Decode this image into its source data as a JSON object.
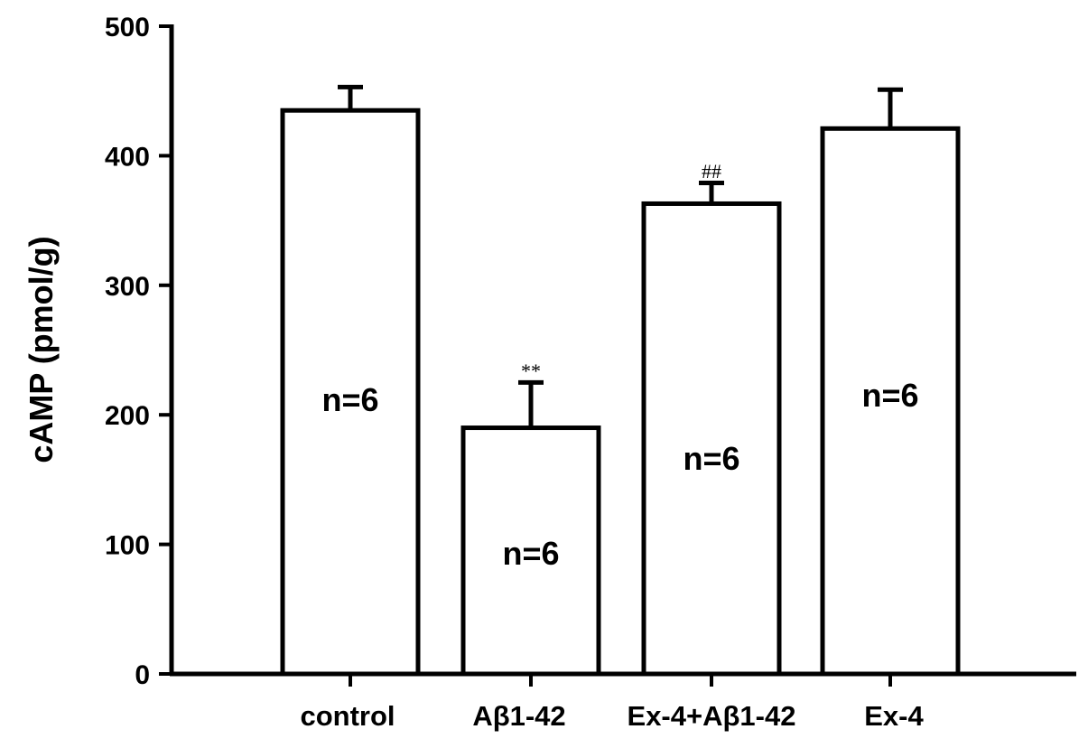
{
  "chart_data": {
    "type": "bar",
    "categories": [
      "control",
      "Aβ1-42",
      "Ex-4+Aβ1-42",
      "Ex-4"
    ],
    "values": [
      435,
      190,
      363,
      421
    ],
    "errors": [
      18,
      35,
      16,
      30
    ],
    "sample_labels": [
      "n=6",
      "n=6",
      "n=6",
      "n=6"
    ],
    "significance": [
      "",
      "**",
      "##",
      ""
    ],
    "ylabel": "cAMP (pmol/g)",
    "xlabel": "",
    "ylim": [
      0,
      500
    ],
    "yticks": [
      0,
      100,
      200,
      300,
      400,
      500
    ],
    "grid": false,
    "legend": "none",
    "colors": {
      "bar_fill": "#ffffff",
      "bar_stroke": "#000000",
      "axis": "#000000"
    }
  }
}
